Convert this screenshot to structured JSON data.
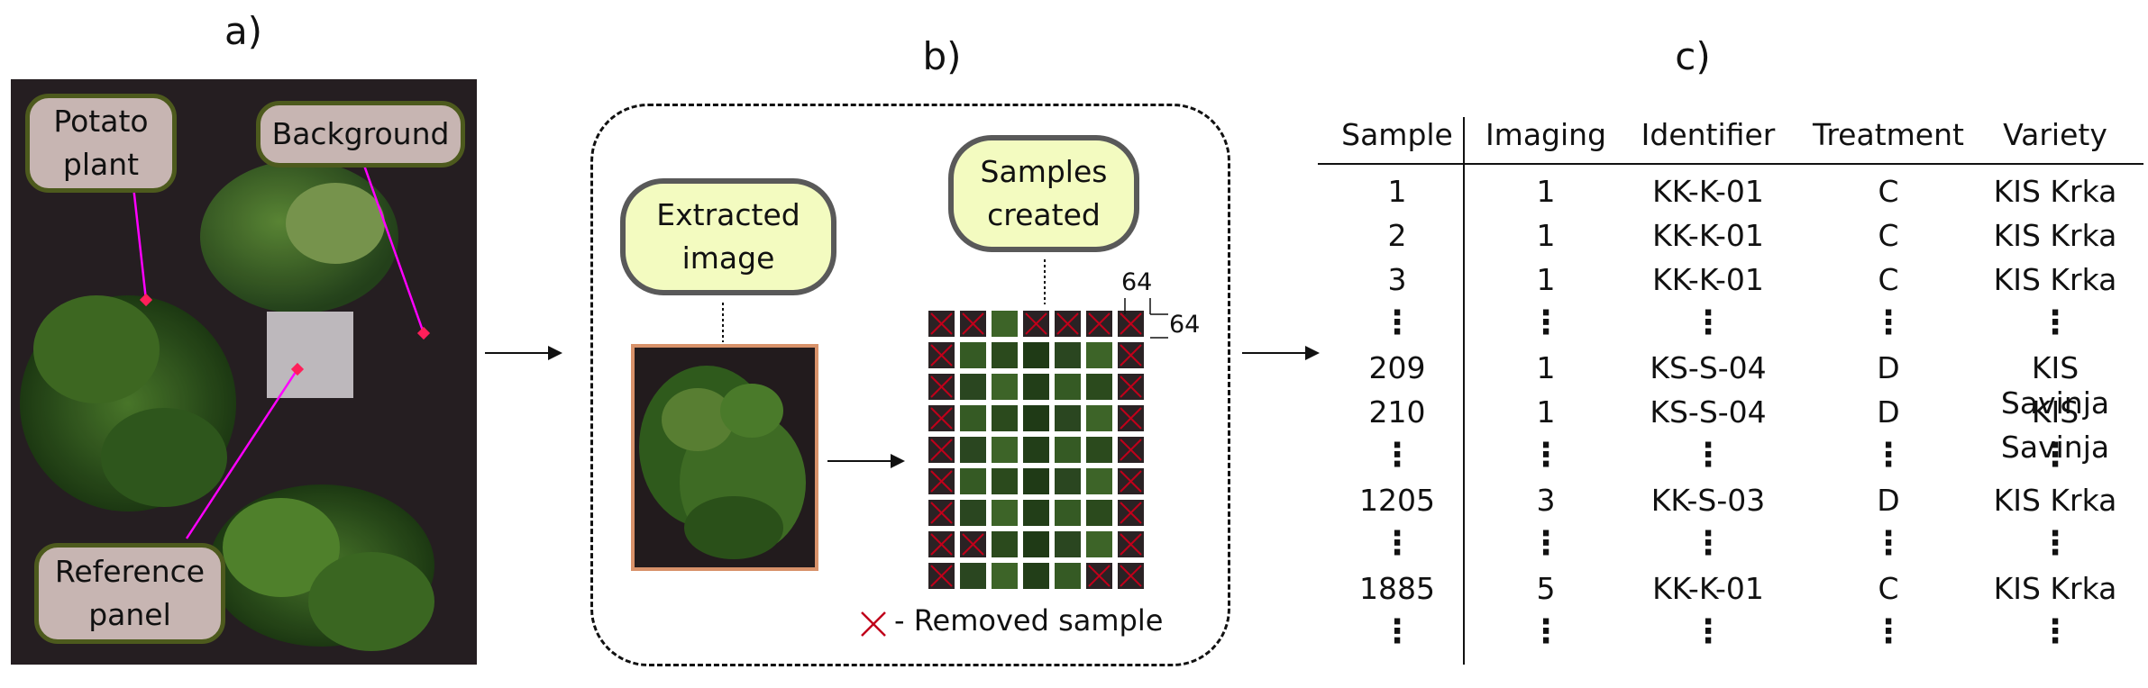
{
  "panel_a": {
    "letter": "a)",
    "labels": {
      "potato_plant": [
        "Potato",
        "plant"
      ],
      "background": "Background",
      "reference_panel": [
        "Reference",
        "panel"
      ]
    }
  },
  "panel_b": {
    "letter": "b)",
    "extracted_image": [
      "Extracted",
      "image"
    ],
    "samples_created": [
      "Samples",
      "created"
    ],
    "dim_width": "64",
    "dim_height": "64",
    "legend": "- Removed sample",
    "grid": {
      "rows": 10,
      "cols": 7,
      "removed": [
        [
          1,
          1,
          0,
          1,
          1,
          1,
          1
        ],
        [
          1,
          0,
          0,
          0,
          0,
          0,
          1
        ],
        [
          1,
          0,
          0,
          0,
          0,
          0,
          1
        ],
        [
          1,
          0,
          0,
          0,
          0,
          0,
          1
        ],
        [
          1,
          0,
          0,
          0,
          0,
          0,
          1
        ],
        [
          1,
          0,
          0,
          0,
          0,
          0,
          1
        ],
        [
          1,
          0,
          0,
          0,
          0,
          0,
          1
        ],
        [
          1,
          1,
          0,
          0,
          0,
          0,
          1
        ],
        [
          1,
          0,
          0,
          0,
          0,
          1,
          1
        ],
        [
          1,
          1,
          1,
          0,
          1,
          1,
          1
        ]
      ]
    }
  },
  "panel_c": {
    "letter": "c)",
    "headers": [
      "Sample",
      "Imaging",
      "Identifier",
      "Treatment",
      "Variety"
    ],
    "rows": [
      [
        "1",
        "1",
        "KK-K-01",
        "C",
        "KIS Krka"
      ],
      [
        "2",
        "1",
        "KK-K-01",
        "C",
        "KIS Krka"
      ],
      [
        "3",
        "1",
        "KK-K-01",
        "C",
        "KIS Krka"
      ],
      [
        "⋮",
        "⋮",
        "⋮",
        "⋮",
        "⋮"
      ],
      [
        "209",
        "1",
        "KS-S-04",
        "D",
        "KIS Savinja"
      ],
      [
        "210",
        "1",
        "KS-S-04",
        "D",
        "KIS Savinja"
      ],
      [
        "⋮",
        "⋮",
        "⋮",
        "⋮",
        "⋮"
      ],
      [
        "1205",
        "3",
        "KK-S-03",
        "D",
        "KIS Krka"
      ],
      [
        "⋮",
        "⋮",
        "⋮",
        "⋮",
        "⋮"
      ],
      [
        "1885",
        "5",
        "KK-K-01",
        "C",
        "KIS Krka"
      ],
      [
        "⋮",
        "⋮",
        "⋮",
        "⋮",
        "⋮"
      ]
    ]
  },
  "colors": {
    "label_fill": "#c7b5b2",
    "label_border": "#4d5a1d",
    "bubble_fill": "#f3fbc0",
    "pointer": "#ff00ff",
    "removed_x": "#c0001a",
    "image_border": "#d8926a"
  }
}
